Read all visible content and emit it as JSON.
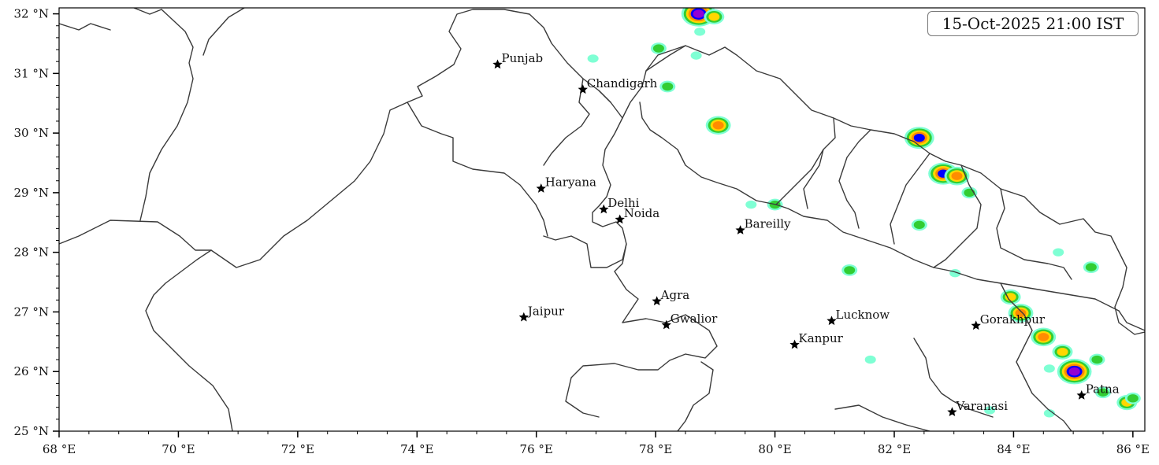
{
  "map": {
    "timestamp": "15-Oct-2025 21:00 IST",
    "lon_range": [
      68,
      86.2
    ],
    "lat_range": [
      25,
      32.1
    ],
    "x_ticks": [
      {
        "value": 68,
        "label": "68 °E"
      },
      {
        "value": 70,
        "label": "70 °E"
      },
      {
        "value": 72,
        "label": "72 °E"
      },
      {
        "value": 74,
        "label": "74 °E"
      },
      {
        "value": 76,
        "label": "76 °E"
      },
      {
        "value": 78,
        "label": "78 °E"
      },
      {
        "value": 80,
        "label": "80 °E"
      },
      {
        "value": 82,
        "label": "82 °E"
      },
      {
        "value": 84,
        "label": "84 °E"
      },
      {
        "value": 86,
        "label": "86 °E"
      }
    ],
    "y_ticks": [
      {
        "value": 32,
        "label": "32 °N"
      },
      {
        "value": 31,
        "label": "31 °N"
      },
      {
        "value": 30,
        "label": "30 °N"
      },
      {
        "value": 29,
        "label": "29 °N"
      },
      {
        "value": 28,
        "label": "28 °N"
      },
      {
        "value": 27,
        "label": "27 °N"
      },
      {
        "value": 26,
        "label": "26 °N"
      },
      {
        "value": 25,
        "label": "25 °N"
      }
    ],
    "cities": [
      {
        "name": "Punjab",
        "lon": 75.35,
        "lat": 31.15
      },
      {
        "name": "Chandigarh",
        "lon": 76.78,
        "lat": 30.73
      },
      {
        "name": "Haryana",
        "lon": 76.08,
        "lat": 29.07
      },
      {
        "name": "Delhi",
        "lon": 77.13,
        "lat": 28.72
      },
      {
        "name": "Noida",
        "lon": 77.4,
        "lat": 28.55
      },
      {
        "name": "Bareilly",
        "lon": 79.42,
        "lat": 28.37
      },
      {
        "name": "Agra",
        "lon": 78.02,
        "lat": 27.18
      },
      {
        "name": "Jaipur",
        "lon": 75.79,
        "lat": 26.91
      },
      {
        "name": "Gwalior",
        "lon": 78.18,
        "lat": 26.78
      },
      {
        "name": "Lucknow",
        "lon": 80.95,
        "lat": 26.85
      },
      {
        "name": "Kanpur",
        "lon": 80.33,
        "lat": 26.45
      },
      {
        "name": "Gorakhpur",
        "lon": 83.37,
        "lat": 26.77
      },
      {
        "name": "Patna",
        "lon": 85.14,
        "lat": 25.6
      },
      {
        "name": "Varanasi",
        "lon": 82.97,
        "lat": 25.32
      }
    ],
    "colors": {
      "level_1": "#7fffd4",
      "level_2": "#32cd32",
      "level_3": "#ffd700",
      "level_4": "#ff8c00",
      "level_5": "#0000ff",
      "level_6": "#9400d3",
      "boundary": "#3a3a3a"
    },
    "cells": [
      {
        "lon": 78.72,
        "lat": 32.0,
        "level": 6
      },
      {
        "lon": 78.98,
        "lat": 31.95,
        "level": 3
      },
      {
        "lon": 78.74,
        "lat": 31.7,
        "level": 1
      },
      {
        "lon": 78.68,
        "lat": 31.3,
        "level": 1
      },
      {
        "lon": 78.05,
        "lat": 31.42,
        "level": 2
      },
      {
        "lon": 76.95,
        "lat": 31.25,
        "level": 1
      },
      {
        "lon": 78.2,
        "lat": 30.78,
        "level": 2
      },
      {
        "lon": 79.05,
        "lat": 30.13,
        "level": 4
      },
      {
        "lon": 82.42,
        "lat": 29.92,
        "level": 5
      },
      {
        "lon": 82.82,
        "lat": 29.32,
        "level": 5
      },
      {
        "lon": 83.05,
        "lat": 29.28,
        "level": 4
      },
      {
        "lon": 83.26,
        "lat": 29.0,
        "level": 2
      },
      {
        "lon": 82.42,
        "lat": 28.46,
        "level": 2
      },
      {
        "lon": 83.02,
        "lat": 27.65,
        "level": 1
      },
      {
        "lon": 81.25,
        "lat": 27.7,
        "level": 2
      },
      {
        "lon": 83.95,
        "lat": 27.25,
        "level": 3
      },
      {
        "lon": 84.12,
        "lat": 26.98,
        "level": 4
      },
      {
        "lon": 84.5,
        "lat": 26.58,
        "level": 4
      },
      {
        "lon": 84.82,
        "lat": 26.33,
        "level": 3
      },
      {
        "lon": 84.6,
        "lat": 26.05,
        "level": 1
      },
      {
        "lon": 85.02,
        "lat": 26.0,
        "level": 6
      },
      {
        "lon": 85.5,
        "lat": 25.65,
        "level": 2
      },
      {
        "lon": 85.9,
        "lat": 25.48,
        "level": 3
      },
      {
        "lon": 84.6,
        "lat": 25.3,
        "level": 1
      },
      {
        "lon": 83.6,
        "lat": 25.35,
        "level": 1
      },
      {
        "lon": 85.4,
        "lat": 26.2,
        "level": 2
      },
      {
        "lon": 86.0,
        "lat": 25.55,
        "level": 2
      },
      {
        "lon": 81.6,
        "lat": 26.2,
        "level": 1
      },
      {
        "lon": 79.6,
        "lat": 28.8,
        "level": 1
      },
      {
        "lon": 80.0,
        "lat": 28.8,
        "level": 2
      },
      {
        "lon": 85.3,
        "lat": 27.75,
        "level": 2
      },
      {
        "lon": 84.75,
        "lat": 28.0,
        "level": 1
      }
    ]
  }
}
